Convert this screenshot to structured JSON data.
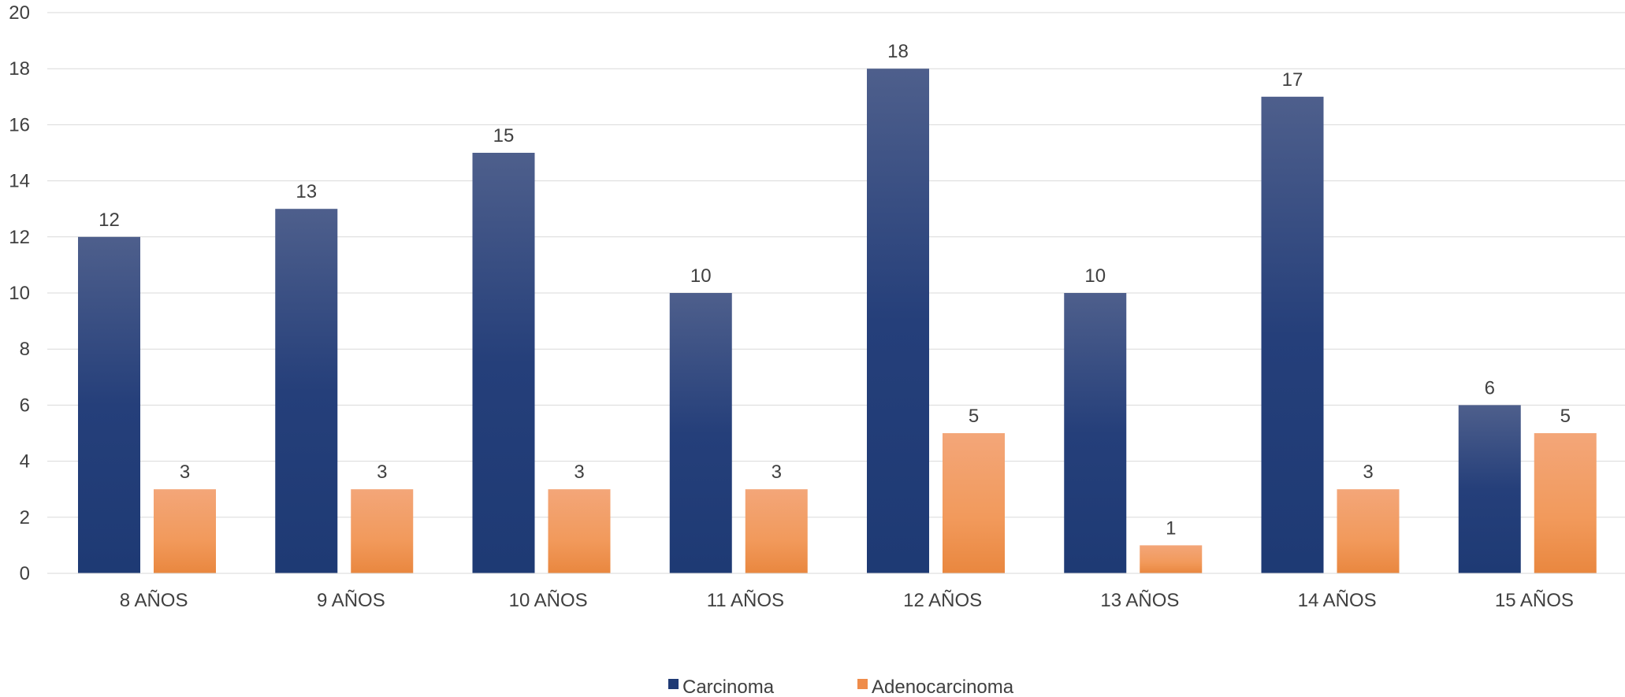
{
  "chart_data": {
    "type": "bar",
    "title": "",
    "xlabel": "",
    "ylabel": "",
    "categories": [
      "8 AÑOS",
      "9 AÑOS",
      "10 AÑOS",
      "11 AÑOS",
      "12 AÑOS",
      "13 AÑOS",
      "14 AÑOS",
      "15 AÑOS"
    ],
    "series": [
      {
        "name": "Carcinoma",
        "values": [
          12,
          13,
          15,
          10,
          18,
          10,
          17,
          6
        ],
        "color_top": "#4a5a8a",
        "color_bottom": "#1f3a75"
      },
      {
        "name": "Adenocarcinoma",
        "values": [
          3,
          3,
          3,
          3,
          5,
          1,
          3,
          5
        ],
        "color_top": "#f4a06a",
        "color_bottom": "#ec8a44"
      }
    ],
    "ylim": [
      0,
      20
    ],
    "yticks": [
      0,
      2,
      4,
      6,
      8,
      10,
      12,
      14,
      16,
      18,
      20
    ],
    "grid": true,
    "legend_position": "bottom"
  }
}
